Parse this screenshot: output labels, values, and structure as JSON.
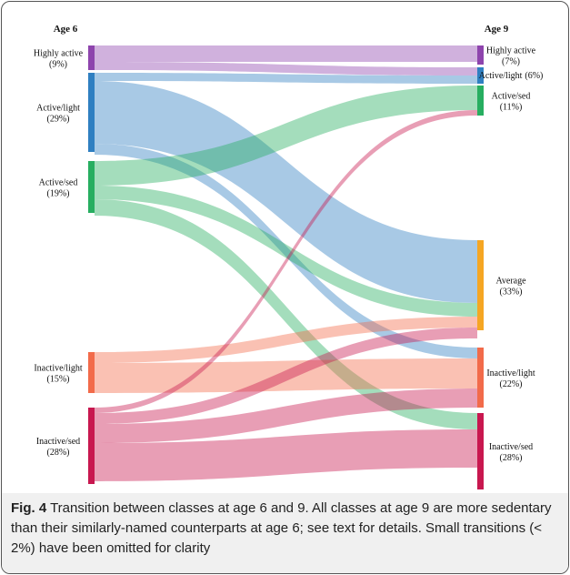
{
  "chart_data": {
    "type": "sankey",
    "columns": [
      "Age 6",
      "Age 9"
    ],
    "nodes": [
      {
        "name": "Highly active",
        "value": 9,
        "value_label": "(9%)",
        "column": 0,
        "color": "#8e44ad"
      },
      {
        "name": "Active/light",
        "value": 29,
        "value_label": "(29%)",
        "column": 0,
        "color": "#2f7fc1"
      },
      {
        "name": "Active/sed",
        "value": 19,
        "value_label": "(19%)",
        "column": 0,
        "color": "#27ae60"
      },
      {
        "name": "Inactive/light",
        "value": 15,
        "value_label": "(15%)",
        "column": 0,
        "color": "#f26b4a"
      },
      {
        "name": "Inactive/sed",
        "value": 28,
        "value_label": "(28%)",
        "column": 0,
        "color": "#c8174f"
      },
      {
        "name": "Highly active",
        "value": 7,
        "value_label": "(7%)",
        "column": 1,
        "color": "#8e44ad"
      },
      {
        "name": "Active/light",
        "value": 6,
        "value_label": "(6%)",
        "column": 1,
        "color": "#2f7fc1"
      },
      {
        "name": "Active/sed",
        "value": 11,
        "value_label": "(11%)",
        "column": 1,
        "color": "#27ae60"
      },
      {
        "name": "Average",
        "value": 33,
        "value_label": "(33%)",
        "column": 1,
        "color": "#f5a623"
      },
      {
        "name": "Inactive/light",
        "value": 22,
        "value_label": "(22%)",
        "column": 1,
        "color": "#f26b4a"
      },
      {
        "name": "Inactive/sed",
        "value": 28,
        "value_label": "(28%)",
        "column": 1,
        "color": "#c8174f"
      }
    ],
    "links": [
      {
        "source": 0,
        "target": 5,
        "value": 6
      },
      {
        "source": 0,
        "target": 6,
        "value": 3
      },
      {
        "source": 1,
        "target": 6,
        "value": 3
      },
      {
        "source": 1,
        "target": 8,
        "value": 23
      },
      {
        "source": 1,
        "target": 9,
        "value": 4
      },
      {
        "source": 2,
        "target": 7,
        "value": 9
      },
      {
        "source": 2,
        "target": 8,
        "value": 5
      },
      {
        "source": 2,
        "target": 10,
        "value": 6
      },
      {
        "source": 3,
        "target": 8,
        "value": 4
      },
      {
        "source": 3,
        "target": 9,
        "value": 11
      },
      {
        "source": 4,
        "target": 7,
        "value": 2
      },
      {
        "source": 4,
        "target": 8,
        "value": 4
      },
      {
        "source": 4,
        "target": 9,
        "value": 7
      },
      {
        "source": 4,
        "target": 10,
        "value": 14
      }
    ]
  },
  "caption": {
    "label": "Fig. 4",
    "text": "Transition between classes at age 6 and 9. All classes at age 9 are more sedentary than their similarly-named counterparts at age 6; see text for details. Small transitions (< 2%) have been omitted for clarity"
  }
}
